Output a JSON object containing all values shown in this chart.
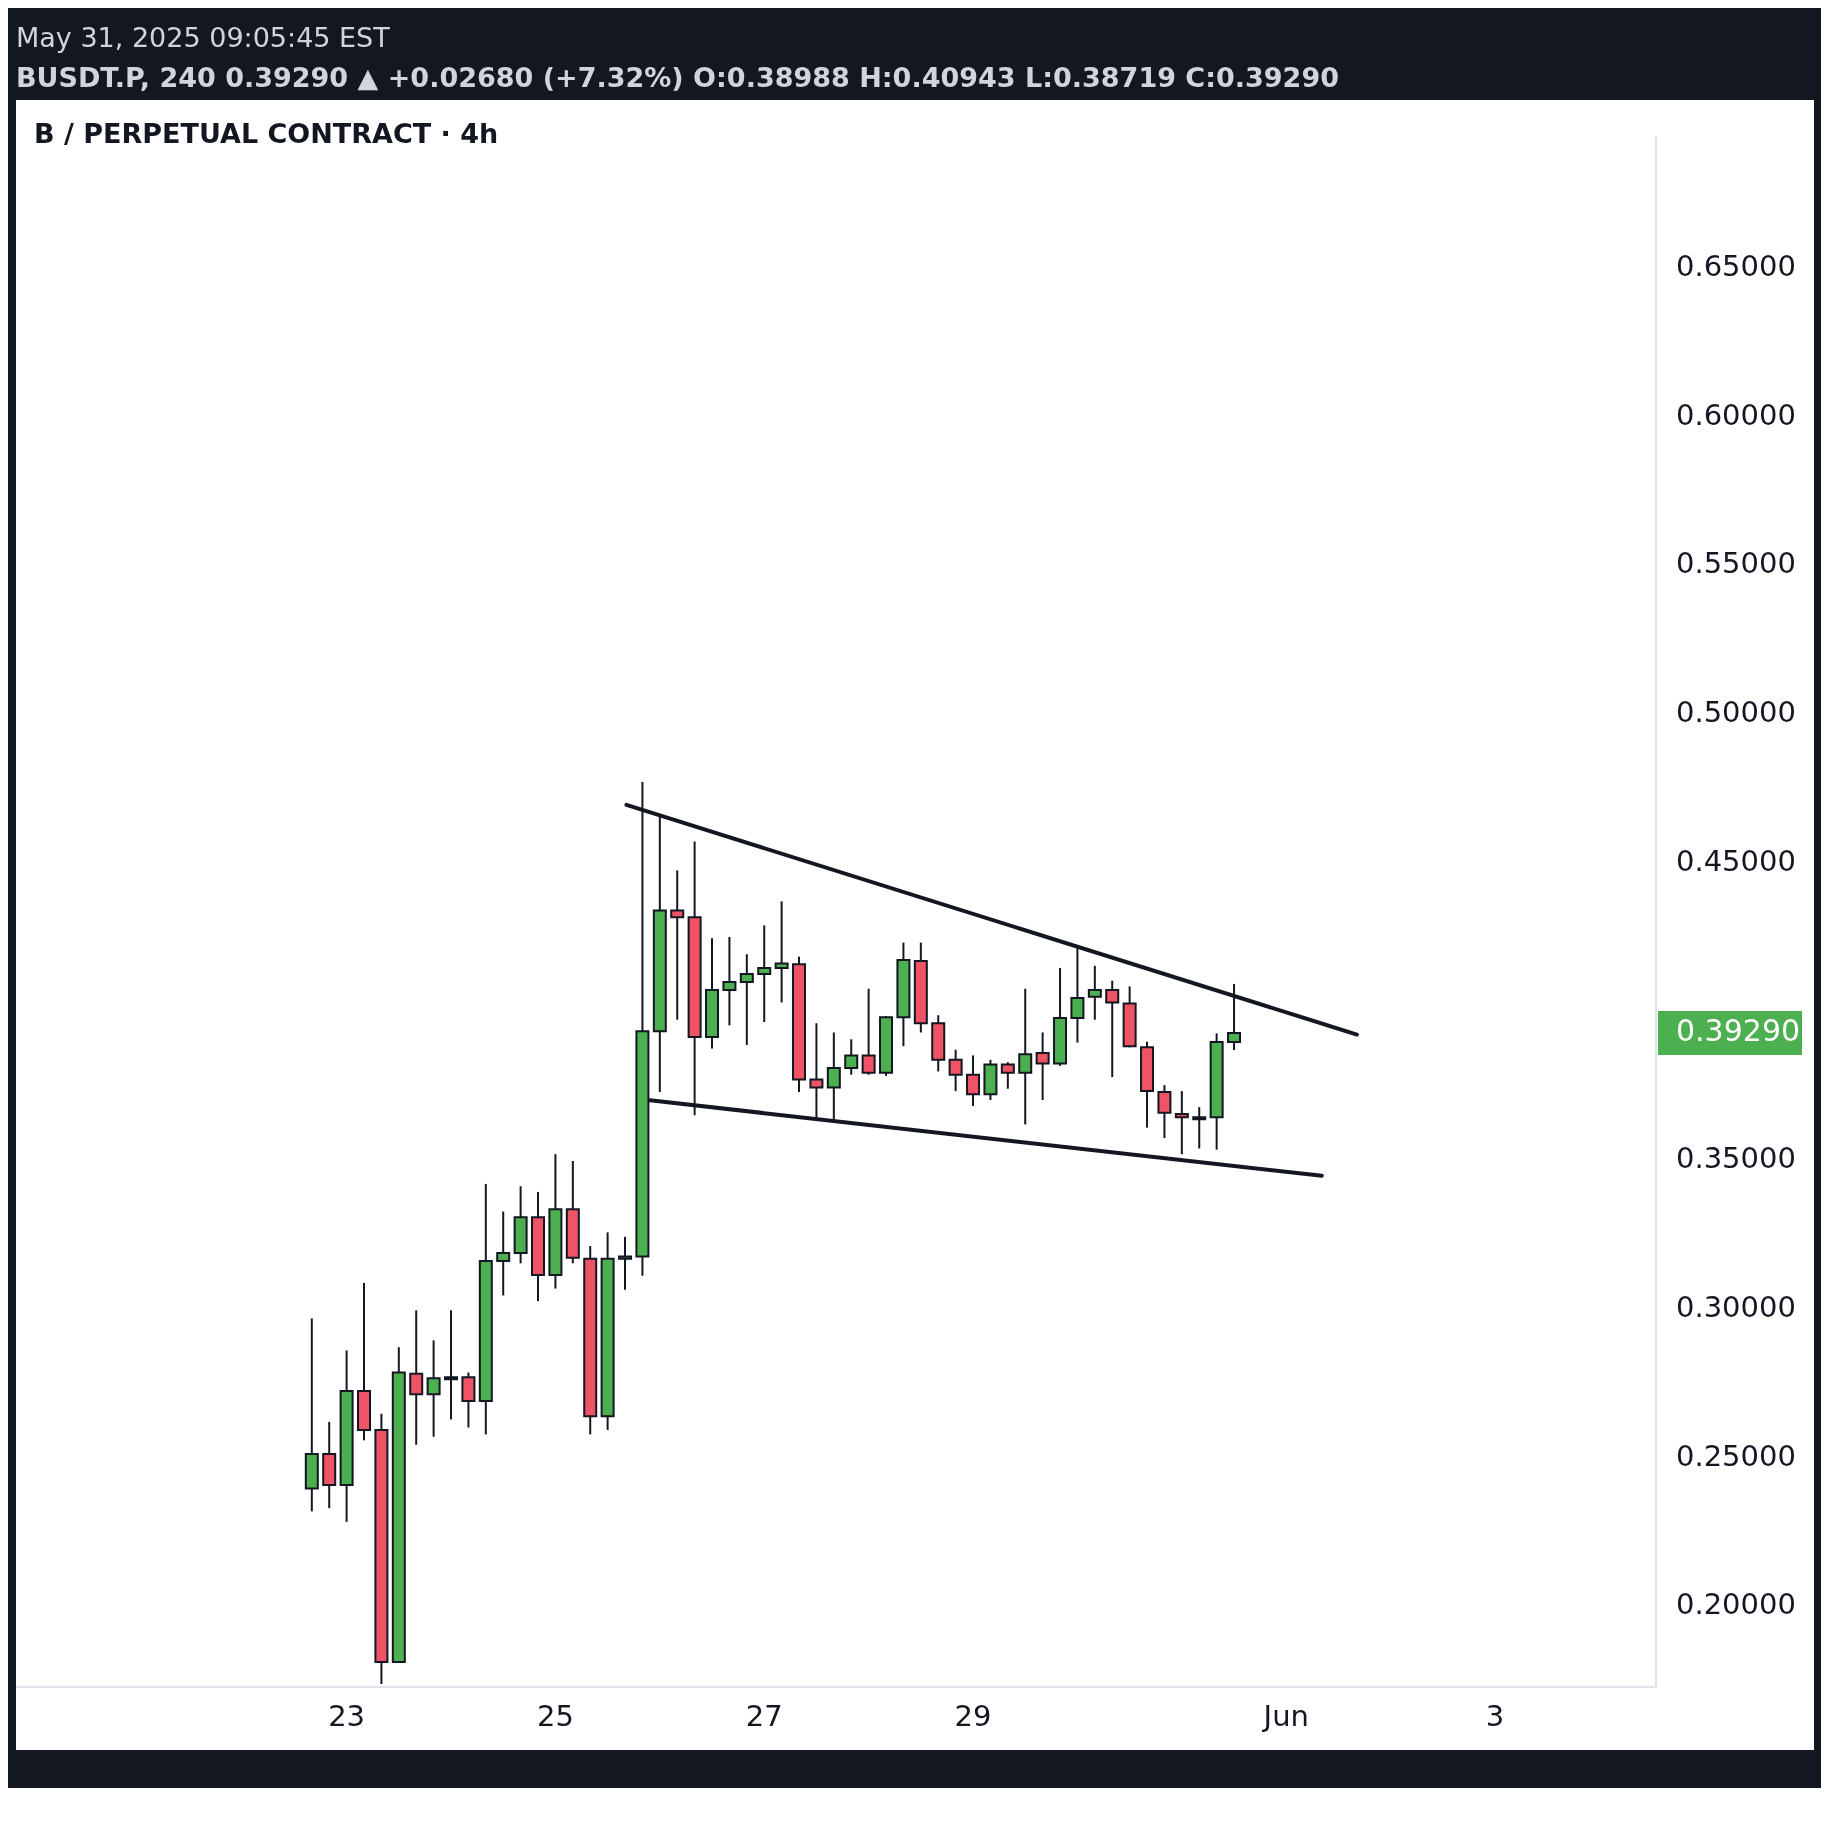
{
  "chart_data": {
    "type": "candlestick",
    "title": "B / PERPETUAL CONTRACT · 4h",
    "subtitle": "BUSDT.P, 240  0.39290 ▲ +0.02680 (+7.32%)  O:0.38988  H:0.40943  L:0.38719  C:0.39290",
    "annotations": [
      "May 31, 2025 09:05:45 EST",
      "0.39290"
    ],
    "x": [
      "2025-05-22T16:00",
      "2025-05-22T20:00",
      "2025-05-23T00:00",
      "2025-05-23T04:00",
      "2025-05-23T08:00",
      "2025-05-23T12:00",
      "2025-05-23T16:00",
      "2025-05-23T20:00",
      "2025-05-24T00:00",
      "2025-05-24T04:00",
      "2025-05-24T08:00",
      "2025-05-24T12:00",
      "2025-05-24T16:00",
      "2025-05-24T20:00",
      "2025-05-25T00:00",
      "2025-05-25T04:00",
      "2025-05-25T08:00",
      "2025-05-25T12:00",
      "2025-05-25T16:00",
      "2025-05-25T20:00",
      "2025-05-26T00:00",
      "2025-05-26T04:00",
      "2025-05-26T08:00",
      "2025-05-26T12:00",
      "2025-05-26T16:00",
      "2025-05-26T20:00",
      "2025-05-27T00:00",
      "2025-05-27T04:00",
      "2025-05-27T08:00",
      "2025-05-27T12:00",
      "2025-05-27T16:00",
      "2025-05-27T20:00",
      "2025-05-28T00:00",
      "2025-05-28T04:00",
      "2025-05-28T08:00",
      "2025-05-28T12:00",
      "2025-05-28T16:00",
      "2025-05-28T20:00",
      "2025-05-29T00:00",
      "2025-05-29T04:00",
      "2025-05-29T08:00",
      "2025-05-29T12:00",
      "2025-05-29T16:00",
      "2025-05-29T20:00",
      "2025-05-30T00:00",
      "2025-05-30T04:00",
      "2025-05-30T08:00",
      "2025-05-30T12:00",
      "2025-05-30T16:00",
      "2025-05-30T20:00",
      "2025-05-31T00:00",
      "2025-05-31T04:00",
      "2025-05-31T08:00",
      "2025-05-31T12:00"
    ],
    "ohlc": [
      [
        0.2398,
        0.297,
        0.2321,
        0.2514
      ],
      [
        0.2514,
        0.2622,
        0.2332,
        0.241
      ],
      [
        0.241,
        0.2862,
        0.2286,
        0.2726
      ],
      [
        0.2726,
        0.3089,
        0.256,
        0.2595
      ],
      [
        0.2595,
        0.2649,
        0.1741,
        0.1815
      ],
      [
        0.1815,
        0.2873,
        0.1812,
        0.2788
      ],
      [
        0.2784,
        0.2997,
        0.2545,
        0.2715
      ],
      [
        0.2715,
        0.2896,
        0.2572,
        0.2769
      ],
      [
        0.2769,
        0.2997,
        0.263,
        0.2772
      ],
      [
        0.2772,
        0.2788,
        0.2603,
        0.2692
      ],
      [
        0.2692,
        0.3422,
        0.258,
        0.3163
      ],
      [
        0.3163,
        0.3329,
        0.3047,
        0.319
      ],
      [
        0.319,
        0.3414,
        0.3155,
        0.331
      ],
      [
        0.331,
        0.3395,
        0.3028,
        0.3116
      ],
      [
        0.3116,
        0.3522,
        0.307,
        0.3337
      ],
      [
        0.3337,
        0.3499,
        0.3155,
        0.3174
      ],
      [
        0.317,
        0.3213,
        0.258,
        0.2641
      ],
      [
        0.2641,
        0.3259,
        0.2595,
        0.317
      ],
      [
        0.317,
        0.3244,
        0.3066,
        0.3178
      ],
      [
        0.3178,
        0.4773,
        0.3113,
        0.3935
      ],
      [
        0.3935,
        0.4658,
        0.3731,
        0.4341
      ],
      [
        0.4341,
        0.4476,
        0.3974,
        0.4318
      ],
      [
        0.4318,
        0.4573,
        0.3653,
        0.3916
      ],
      [
        0.3916,
        0.4248,
        0.3877,
        0.4074
      ],
      [
        0.4074,
        0.4252,
        0.3955,
        0.4101
      ],
      [
        0.4101,
        0.4194,
        0.3889,
        0.4128
      ],
      [
        0.4128,
        0.4291,
        0.3966,
        0.4148
      ],
      [
        0.4148,
        0.4372,
        0.4032,
        0.4163
      ],
      [
        0.416,
        0.4186,
        0.3731,
        0.3773
      ],
      [
        0.3773,
        0.3962,
        0.3638,
        0.3746
      ],
      [
        0.3746,
        0.3931,
        0.363,
        0.3812
      ],
      [
        0.3812,
        0.3908,
        0.3789,
        0.3854
      ],
      [
        0.3854,
        0.4078,
        0.3789,
        0.3796
      ],
      [
        0.3796,
        0.3986,
        0.3785,
        0.3982
      ],
      [
        0.3982,
        0.4233,
        0.3885,
        0.4175
      ],
      [
        0.4171,
        0.4233,
        0.3931,
        0.3962
      ],
      [
        0.3962,
        0.3989,
        0.38,
        0.3839
      ],
      [
        0.3839,
        0.3873,
        0.3734,
        0.3789
      ],
      [
        0.3789,
        0.3854,
        0.3684,
        0.3723
      ],
      [
        0.3723,
        0.3839,
        0.3704,
        0.3823
      ],
      [
        0.3823,
        0.3831,
        0.3742,
        0.3796
      ],
      [
        0.3796,
        0.4078,
        0.3622,
        0.3858
      ],
      [
        0.3862,
        0.3931,
        0.3704,
        0.3827
      ],
      [
        0.3827,
        0.4148,
        0.3819,
        0.398
      ],
      [
        0.398,
        0.4221,
        0.3897,
        0.4047
      ],
      [
        0.4051,
        0.4155,
        0.3974,
        0.4074
      ],
      [
        0.4074,
        0.4105,
        0.3781,
        0.4032
      ],
      [
        0.4028,
        0.4086,
        0.3881,
        0.3885
      ],
      [
        0.3881,
        0.39,
        0.3611,
        0.3734
      ],
      [
        0.3731,
        0.3754,
        0.3576,
        0.3661
      ],
      [
        0.3657,
        0.3734,
        0.3522,
        0.3646
      ],
      [
        0.3646,
        0.368,
        0.3541,
        0.3646
      ],
      [
        0.3646,
        0.3928,
        0.3537,
        0.38988
      ],
      [
        0.38988,
        0.40943,
        0.38719,
        0.3929
      ]
    ],
    "colors": [
      "#4caf50",
      "#ef5466",
      "#4caf50",
      "#ef5466",
      "#ef5466",
      "#4caf50",
      "#ef5466",
      "#4caf50",
      "#4caf50",
      "#ef5466",
      "#4caf50",
      "#4caf50",
      "#4caf50",
      "#ef5466",
      "#4caf50",
      "#ef5466",
      "#ef5466",
      "#4caf50",
      "#4caf50",
      "#4caf50",
      "#4caf50",
      "#ef5466",
      "#ef5466",
      "#4caf50",
      "#4caf50",
      "#4caf50",
      "#4caf50",
      "#4caf50",
      "#ef5466",
      "#ef5466",
      "#4caf50",
      "#4caf50",
      "#ef5466",
      "#4caf50",
      "#4caf50",
      "#ef5466",
      "#ef5466",
      "#ef5466",
      "#ef5466",
      "#4caf50",
      "#ef5466",
      "#4caf50",
      "#ef5466",
      "#4caf50",
      "#4caf50",
      "#4caf50",
      "#ef5466",
      "#ef5466",
      "#ef5466",
      "#ef5466",
      "#ef5466",
      "#4caf50",
      "#4caf50",
      "#4caf50"
    ],
    "series": [
      {
        "type": "line",
        "color": "#131722",
        "x": [
          "2025-05-25T16:20",
          "2025-06-01T16:15"
        ],
        "values": [
          0.4696,
          0.3924
        ]
      },
      {
        "type": "line",
        "color": "#131722",
        "x": [
          "2025-05-25T21:45",
          "2025-06-01T08:10"
        ],
        "values": [
          0.3703,
          0.3449
        ]
      }
    ],
    "xlim": [
      "2025-05-19T20:00",
      "2025-06-04T13:00"
    ],
    "xticks": [
      {
        "value": "2025-05-23",
        "label": "23"
      },
      {
        "value": "2025-05-25",
        "label": "25"
      },
      {
        "value": "2025-05-27",
        "label": "27"
      },
      {
        "value": "2025-05-29",
        "label": "29"
      },
      {
        "value": "2025-06-01",
        "label": "Jun"
      },
      {
        "value": "2025-06-03",
        "label": "3"
      }
    ],
    "ylim": [
      0.173,
      0.694
    ],
    "yticks": [
      {
        "value": 0.2,
        "label": "0.20000"
      },
      {
        "value": 0.25,
        "label": "0.25000"
      },
      {
        "value": 0.3,
        "label": "0.30000"
      },
      {
        "value": 0.35,
        "label": "0.35000"
      },
      {
        "value": 0.45,
        "label": "0.45000"
      },
      {
        "value": 0.5,
        "label": "0.50000"
      },
      {
        "value": 0.55,
        "label": "0.55000"
      },
      {
        "value": 0.6,
        "label": "0.60000"
      },
      {
        "value": 0.65,
        "label": "0.65000"
      }
    ],
    "grid": false,
    "legend": false
  }
}
